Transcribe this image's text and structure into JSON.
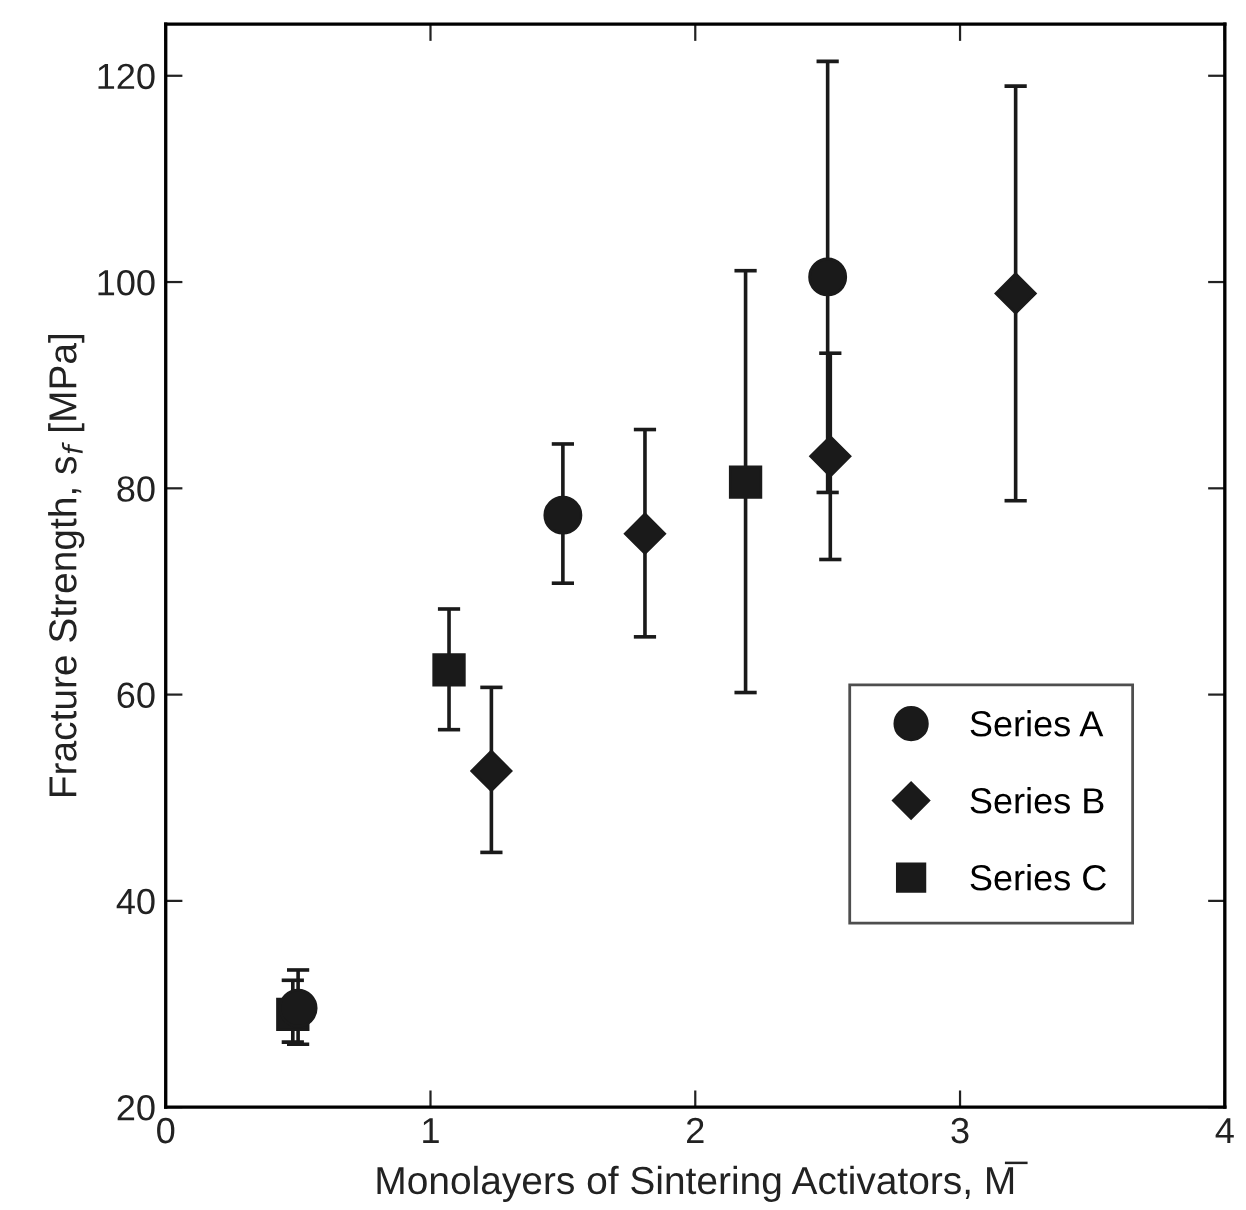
{
  "chart_data": {
    "type": "scatter",
    "xlabel": "Monolayers of Sintering Activators, M̅",
    "ylabel": "Fracture Strength, s$_{f}$ [MPa]",
    "xlim": [
      0,
      4
    ],
    "xticks": [
      0,
      1,
      2,
      3,
      4
    ],
    "ylim": [
      20,
      125
    ],
    "yticks": [
      20,
      40,
      60,
      80,
      100,
      120
    ],
    "grid": false,
    "legend": "right",
    "series": [
      {
        "name": "Series A",
        "color": "#1a1a1a",
        "marker": "circle",
        "x": [
          0.5,
          1.5,
          2.5
        ],
        "values": [
          29.6,
          77.4,
          100.5
        ],
        "errors": [
          [
            26.1,
            33.3
          ],
          [
            70.8,
            84.3
          ],
          [
            79.6,
            121.4
          ]
        ]
      },
      {
        "name": "Series B",
        "color": "#1a1a1a",
        "marker": "diamond",
        "x": [
          1.23,
          1.81,
          2.51,
          3.21
        ],
        "values": [
          52.6,
          75.6,
          83.1,
          98.9
        ],
        "errors": [
          [
            44.7,
            60.7
          ],
          [
            65.6,
            85.7
          ],
          [
            73.1,
            93.1
          ],
          [
            78.8,
            119
          ]
        ]
      },
      {
        "name": "Series C",
        "color": "#1a1a1a",
        "marker": "square",
        "x": [
          0.48,
          1.07,
          2.19
        ],
        "values": [
          29.0,
          62.4,
          80.6
        ],
        "errors": [
          [
            26.3,
            32.3
          ],
          [
            56.6,
            68.3
          ],
          [
            60.2,
            101.1
          ]
        ]
      }
    ]
  }
}
